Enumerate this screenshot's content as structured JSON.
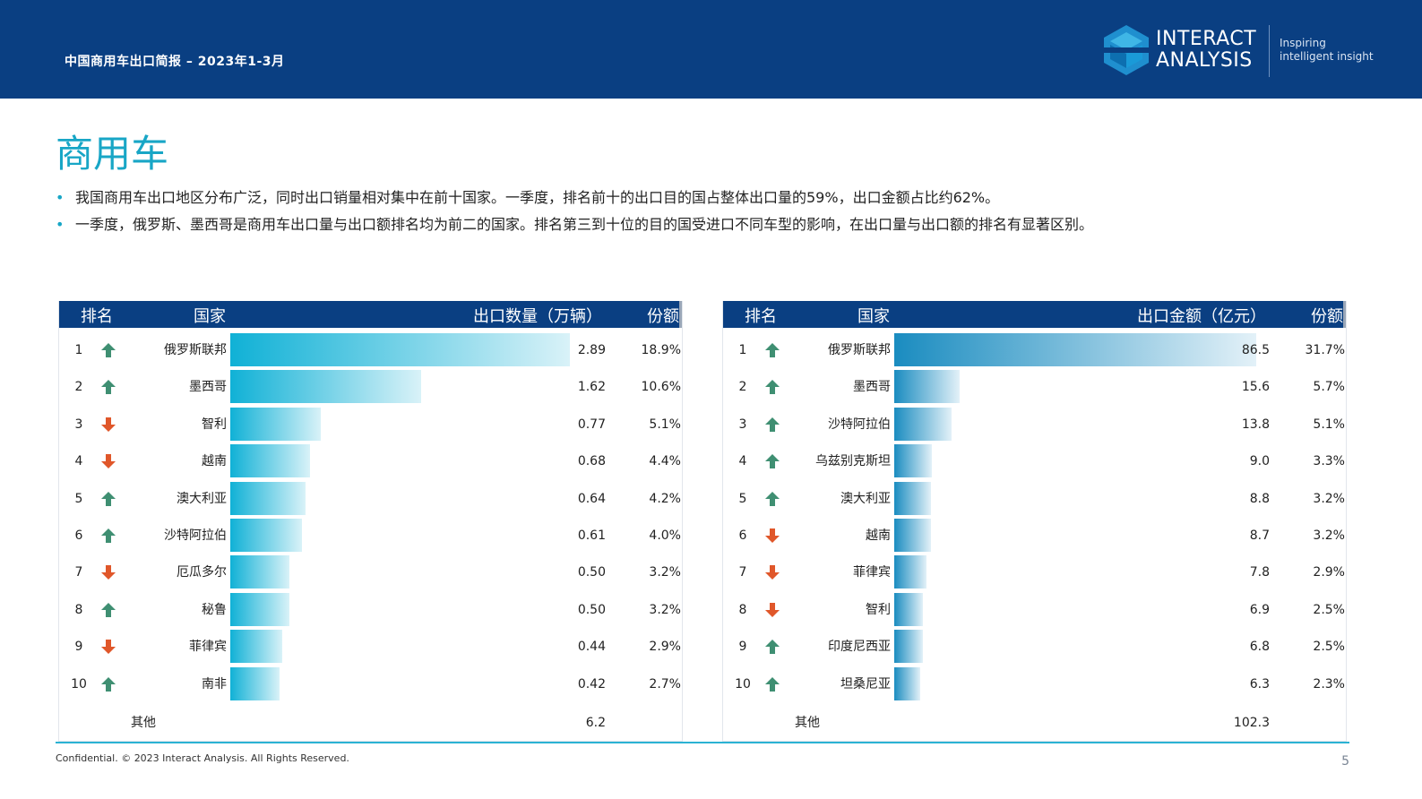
{
  "header": {
    "report_title": "中国商用车出口简报 – 2023年1-3月",
    "logo_line1": "INTERACT",
    "logo_line2": "ANALYSIS",
    "tagline_line1": "Inspiring",
    "tagline_line2": "intelligent insight"
  },
  "page_title": "商用车",
  "bullets": [
    "我国商用车出口地区分布广泛，同时出口销量相对集中在前十国家。一季度，排名前十的出口目的国占整体出口量的59%，出口金额占比约62%。",
    "一季度，俄罗斯、墨西哥是商用车出口量与出口额排名均为前二的国家。排名第三到十位的目的国受进口不同车型的影响，在出口量与出口额的排名有显著区别。"
  ],
  "colors": {
    "brand": "#0a3f82",
    "accent": "#18a6c6",
    "up": "#3f8f72",
    "down": "#e0572a"
  },
  "chart_data": [
    {
      "type": "bar",
      "headers": {
        "rank": "排名",
        "country": "国家",
        "value": "出口数量（万辆）",
        "share": "份额"
      },
      "gradient": [
        "#10b1d6",
        "#d9f2f8"
      ],
      "ylim": [
        0,
        3.2
      ],
      "rows": [
        {
          "rank": "1",
          "trend": "up",
          "country": "俄罗斯联邦",
          "value": 2.89,
          "label": "2.89",
          "share": "18.9%"
        },
        {
          "rank": "2",
          "trend": "up",
          "country": "墨西哥",
          "value": 1.62,
          "label": "1.62",
          "share": "10.6%"
        },
        {
          "rank": "3",
          "trend": "down",
          "country": "智利",
          "value": 0.77,
          "label": "0.77",
          "share": "5.1%"
        },
        {
          "rank": "4",
          "trend": "down",
          "country": "越南",
          "value": 0.68,
          "label": "0.68",
          "share": "4.4%"
        },
        {
          "rank": "5",
          "trend": "up",
          "country": "澳大利亚",
          "value": 0.64,
          "label": "0.64",
          "share": "4.2%"
        },
        {
          "rank": "6",
          "trend": "up",
          "country": "沙特阿拉伯",
          "value": 0.61,
          "label": "0.61",
          "share": "4.0%"
        },
        {
          "rank": "7",
          "trend": "down",
          "country": "厄瓜多尔",
          "value": 0.5,
          "label": "0.50",
          "share": "3.2%"
        },
        {
          "rank": "8",
          "trend": "up",
          "country": "秘鲁",
          "value": 0.5,
          "label": "0.50",
          "share": "3.2%"
        },
        {
          "rank": "9",
          "trend": "down",
          "country": "菲律宾",
          "value": 0.44,
          "label": "0.44",
          "share": "2.9%"
        },
        {
          "rank": "10",
          "trend": "up",
          "country": "南非",
          "value": 0.42,
          "label": "0.42",
          "share": "2.7%"
        }
      ],
      "other": {
        "label": "其他",
        "value": "6.2"
      }
    },
    {
      "type": "bar",
      "headers": {
        "rank": "排名",
        "country": "国家",
        "value": "出口金额（亿元）",
        "share": "份额"
      },
      "gradient": [
        "#1a8cc0",
        "#e3f1f8"
      ],
      "ylim": [
        0,
        90
      ],
      "rows": [
        {
          "rank": "1",
          "trend": "up",
          "country": "俄罗斯联邦",
          "value": 86.5,
          "label": "86.5",
          "share": "31.7%"
        },
        {
          "rank": "2",
          "trend": "up",
          "country": "墨西哥",
          "value": 15.6,
          "label": "15.6",
          "share": "5.7%"
        },
        {
          "rank": "3",
          "trend": "up",
          "country": "沙特阿拉伯",
          "value": 13.8,
          "label": "13.8",
          "share": "5.1%"
        },
        {
          "rank": "4",
          "trend": "up",
          "country": "乌兹别克斯坦",
          "value": 9.0,
          "label": "9.0",
          "share": "3.3%"
        },
        {
          "rank": "5",
          "trend": "up",
          "country": "澳大利亚",
          "value": 8.8,
          "label": "8.8",
          "share": "3.2%"
        },
        {
          "rank": "6",
          "trend": "down",
          "country": "越南",
          "value": 8.7,
          "label": "8.7",
          "share": "3.2%"
        },
        {
          "rank": "7",
          "trend": "down",
          "country": "菲律宾",
          "value": 7.8,
          "label": "7.8",
          "share": "2.9%"
        },
        {
          "rank": "8",
          "trend": "down",
          "country": "智利",
          "value": 6.9,
          "label": "6.9",
          "share": "2.5%"
        },
        {
          "rank": "9",
          "trend": "up",
          "country": "印度尼西亚",
          "value": 6.8,
          "label": "6.8",
          "share": "2.5%"
        },
        {
          "rank": "10",
          "trend": "up",
          "country": "坦桑尼亚",
          "value": 6.3,
          "label": "6.3",
          "share": "2.3%"
        }
      ],
      "other": {
        "label": "其他",
        "value": "102.3"
      }
    }
  ],
  "footer": {
    "confidential": "Confidential. © 2023 Interact Analysis. All Rights Reserved.",
    "page_number": "5"
  }
}
